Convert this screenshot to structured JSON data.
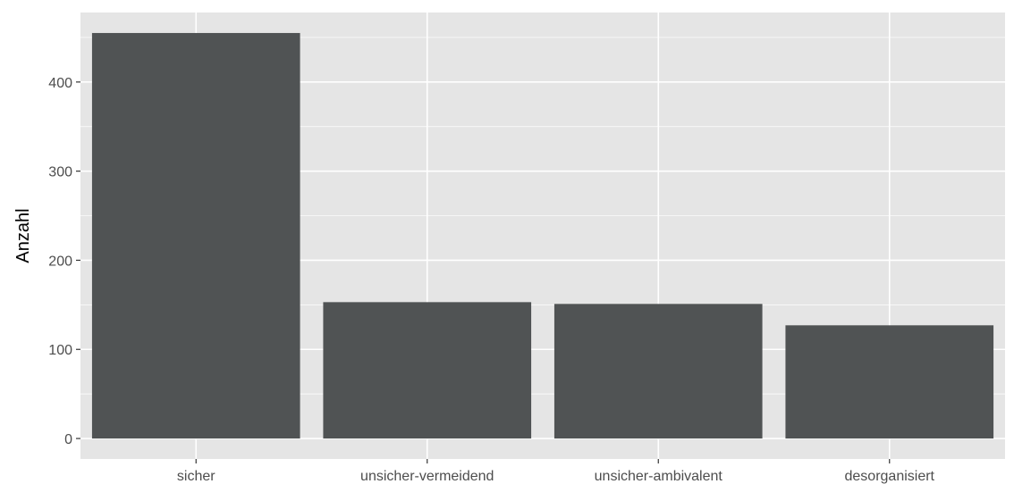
{
  "chart_data": {
    "type": "bar",
    "title": "",
    "xlabel": "",
    "ylabel": "Anzahl",
    "categories": [
      "sicher",
      "unsicher-vermeidend",
      "unsicher-ambivalent",
      "desorganisiert"
    ],
    "values": [
      455,
      153,
      151,
      127
    ],
    "ylim": [
      -23,
      478
    ],
    "yticks": [
      0,
      100,
      200,
      300,
      400
    ],
    "ytick_labels": [
      "0",
      "100",
      "200",
      "300",
      "400"
    ],
    "grid": true,
    "legend": "none",
    "colors": {
      "panel": "#e5e5e5",
      "grid": "#ffffff",
      "bar": "#505354",
      "tick_text": "#4d4d4d",
      "axis_title": "#000000"
    }
  }
}
